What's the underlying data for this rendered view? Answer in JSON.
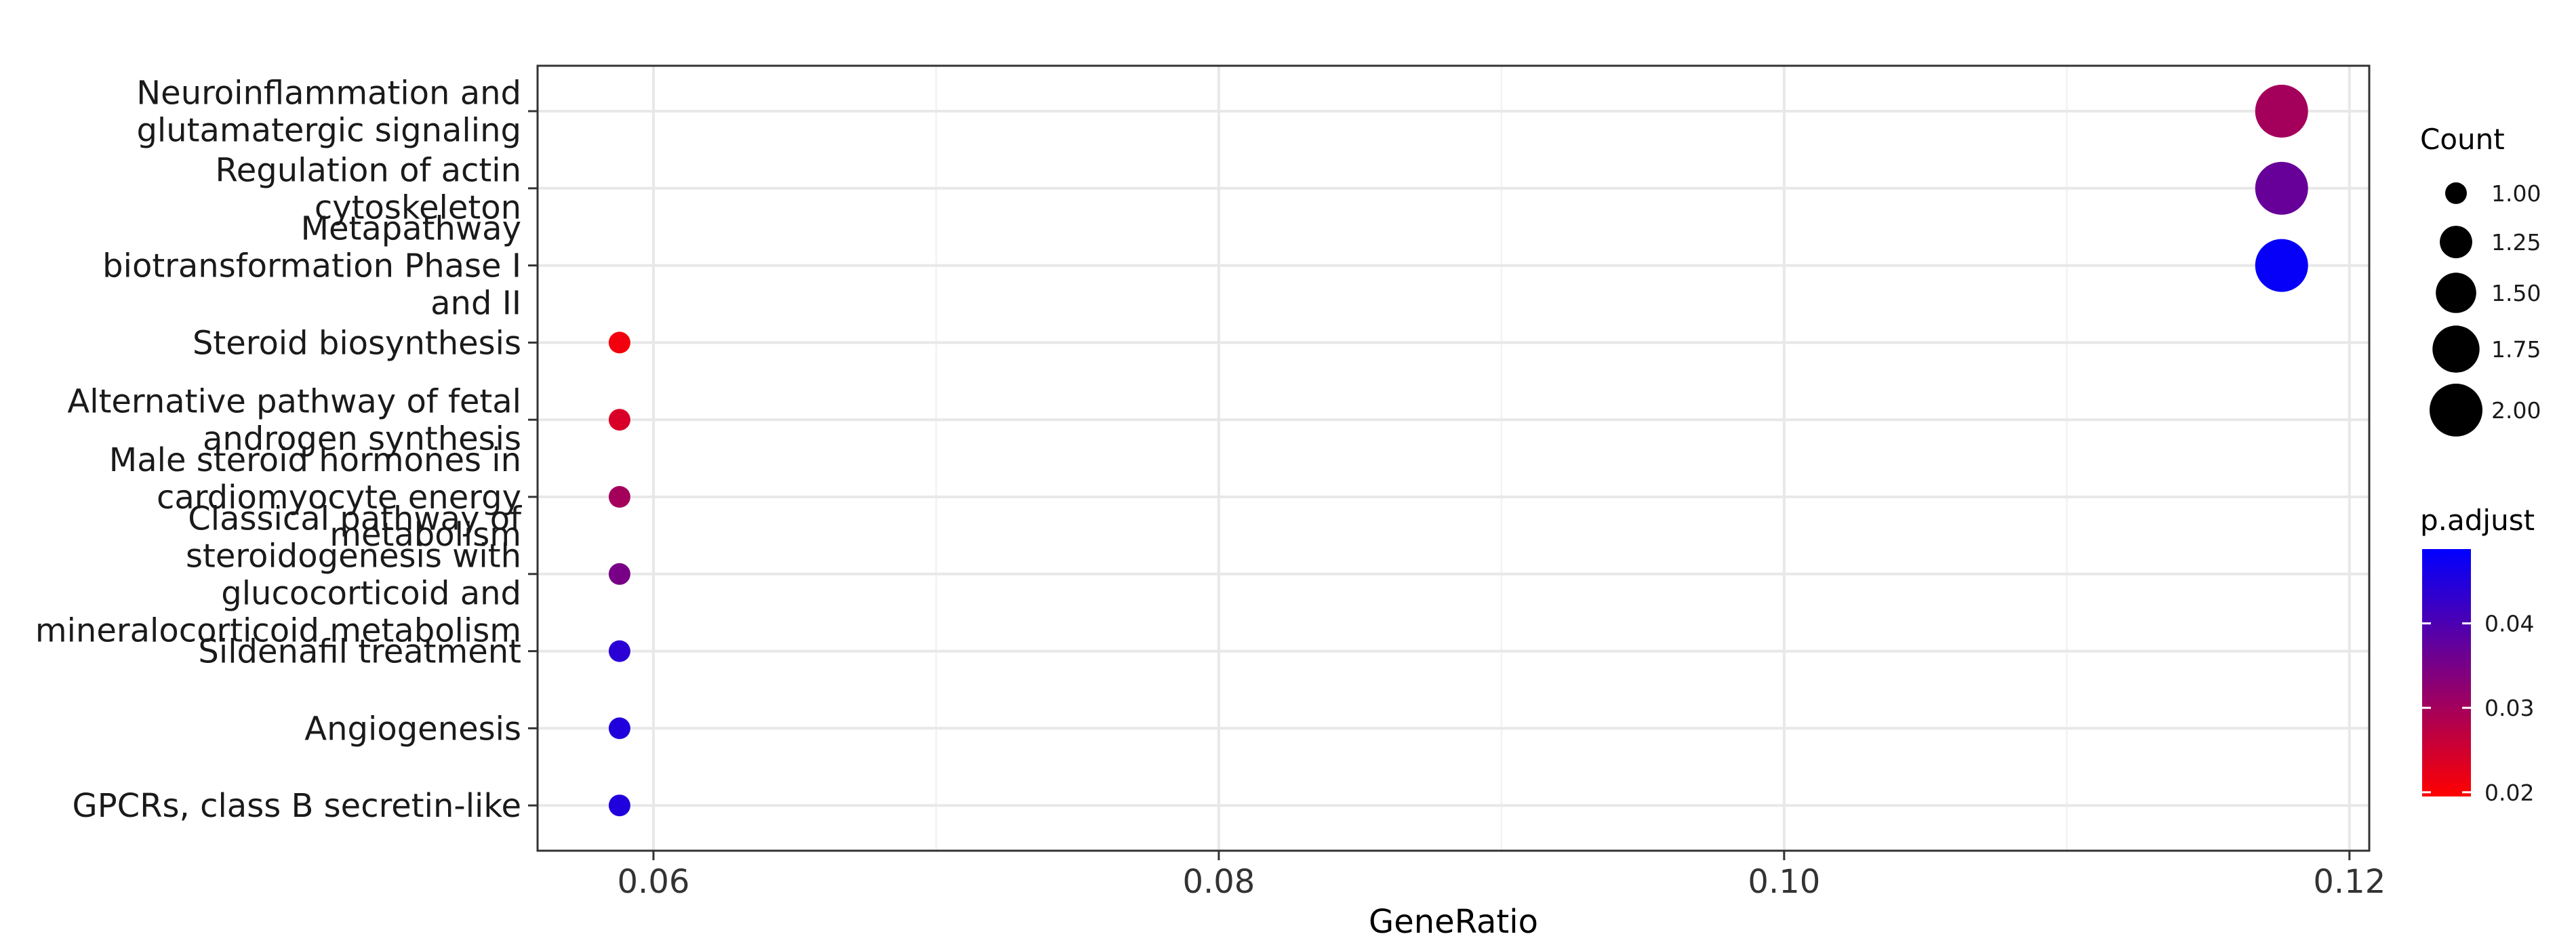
{
  "chart_data": {
    "type": "scatter",
    "xlabel": "GeneRatio",
    "ylabel": "",
    "xlim": [
      0.0559,
      0.1207
    ],
    "x_ticks": [
      0.06,
      0.08,
      0.1,
      0.12
    ],
    "x_tick_labels": [
      "0.06",
      "0.08",
      "0.10",
      "0.12"
    ],
    "categories": [
      "Neuroinflammation and glutamatergic signaling",
      "Regulation of actin cytoskeleton",
      "Metapathway biotransformation Phase I and II",
      "Steroid biosynthesis",
      "Alternative pathway of fetal androgen synthesis",
      "Male steroid hormones in cardiomyocyte energy metabolism",
      "Classical pathway of steroidogenesis with glucocorticoid and mineralocorticoid metabolism",
      "Sildenafil treatment",
      "Angiogenesis",
      "GPCRs, class B secretin-like"
    ],
    "category_label_lines": [
      [
        "Neuroinflammation and",
        "glutamatergic signaling"
      ],
      [
        "Regulation of actin",
        "cytoskeleton"
      ],
      [
        "Metapathway",
        "biotransformation Phase I",
        "and II"
      ],
      [
        "Steroid biosynthesis"
      ],
      [
        "Alternative pathway of fetal",
        "androgen synthesis"
      ],
      [
        "Male steroid hormones in",
        "cardiomyocyte energy",
        "metabolism"
      ],
      [
        "Classical pathway of",
        "steroidogenesis with",
        "glucocorticoid and",
        "mineralocorticoid metabolism"
      ],
      [
        "Sildenafil treatment"
      ],
      [
        "Angiogenesis"
      ],
      [
        "GPCRs, class B secretin-like"
      ]
    ],
    "points": [
      {
        "category": "Neuroinflammation and glutamatergic signaling",
        "gene_ratio": 0.1176,
        "count": 2,
        "p_adjust": 0.03
      },
      {
        "category": "Regulation of actin cytoskeleton",
        "gene_ratio": 0.1176,
        "count": 2,
        "p_adjust": 0.037
      },
      {
        "category": "Metapathway biotransformation Phase I and II",
        "gene_ratio": 0.1176,
        "count": 2,
        "p_adjust": 0.048
      },
      {
        "category": "Steroid biosynthesis",
        "gene_ratio": 0.0588,
        "count": 1,
        "p_adjust": 0.021
      },
      {
        "category": "Alternative pathway of fetal androgen synthesis",
        "gene_ratio": 0.0588,
        "count": 1,
        "p_adjust": 0.024
      },
      {
        "category": "Male steroid hormones in cardiomyocyte energy metabolism",
        "gene_ratio": 0.0588,
        "count": 1,
        "p_adjust": 0.03
      },
      {
        "category": "Classical pathway of steroidogenesis with glucocorticoid and mineralocorticoid metabolism",
        "gene_ratio": 0.0588,
        "count": 1,
        "p_adjust": 0.035
      },
      {
        "category": "Sildenafil treatment",
        "gene_ratio": 0.0588,
        "count": 1,
        "p_adjust": 0.044
      },
      {
        "category": "Angiogenesis",
        "gene_ratio": 0.0588,
        "count": 1,
        "p_adjust": 0.045
      },
      {
        "category": "GPCRs, class B secretin-like",
        "gene_ratio": 0.0588,
        "count": 1,
        "p_adjust": 0.045
      }
    ],
    "legend_size": {
      "title": "Count",
      "values": [
        1.0,
        1.25,
        1.5,
        1.75,
        2.0
      ],
      "labels": [
        "1.00",
        "1.25",
        "1.50",
        "1.75",
        "2.00"
      ]
    },
    "legend_color": {
      "title": "p.adjust",
      "range": [
        0.0195,
        0.0488
      ],
      "low_color": "#ff0000",
      "high_color": "#0000ff",
      "tick_values": [
        0.02,
        0.03,
        0.04
      ],
      "tick_labels": [
        "0.02",
        "0.03",
        "0.04"
      ]
    },
    "grid": true,
    "legend_position": "right"
  }
}
